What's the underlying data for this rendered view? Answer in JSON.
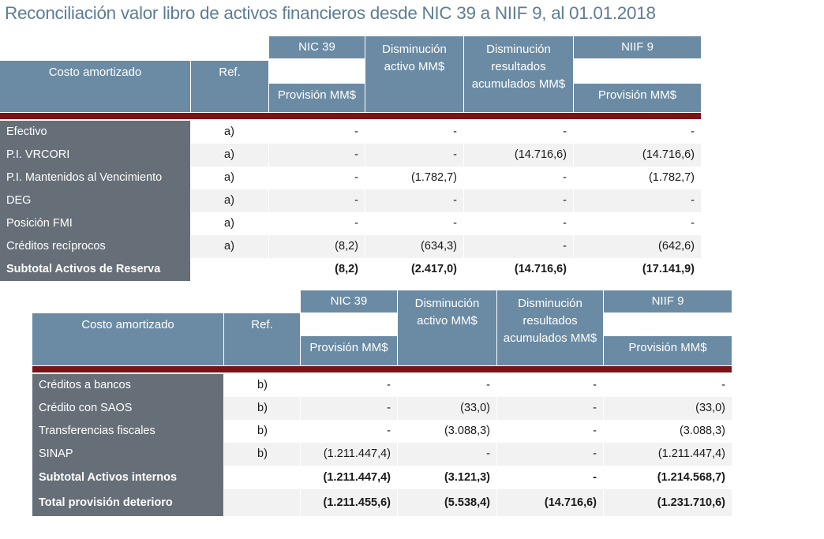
{
  "title": "Reconciliación valor libro de activos financieros desde NIC 39 a NIIF 9, al 01.01.2018",
  "table1": {
    "group_headers": [
      "NIC 39",
      "Disminución activo MM$",
      "Disminución resultados acumulados MM$",
      "NIIF 9"
    ],
    "headers": {
      "label": "Costo amortizado",
      "ref": "Ref.",
      "nic39": "Provisión MM$",
      "dis_activo": "Disminución activo MM$",
      "dis_result": "Disminución resultados acumulados MM$",
      "niif9": "Provisión MM$"
    },
    "rows": [
      {
        "label": "Efectivo",
        "ref": "a)",
        "nic39": "-",
        "dis_activo": "-",
        "dis_result": "-",
        "niif9": "-"
      },
      {
        "label": "P.I. VRCORI",
        "ref": "a)",
        "nic39": "-",
        "dis_activo": "-",
        "dis_result": "(14.716,6)",
        "niif9": "(14.716,6)"
      },
      {
        "label": "P.I. Mantenidos al Vencimiento",
        "ref": "a)",
        "nic39": "-",
        "dis_activo": "(1.782,7)",
        "dis_result": "-",
        "niif9": "(1.782,7)"
      },
      {
        "label": "DEG",
        "ref": "a)",
        "nic39": "-",
        "dis_activo": "-",
        "dis_result": "-",
        "niif9": "-"
      },
      {
        "label": "Posición FMI",
        "ref": "a)",
        "nic39": "-",
        "dis_activo": "-",
        "dis_result": "-",
        "niif9": "-"
      },
      {
        "label": "Créditos recíprocos",
        "ref": "a)",
        "nic39": "(8,2)",
        "dis_activo": "(634,3)",
        "dis_result": "-",
        "niif9": "(642,6)"
      },
      {
        "label": "Subtotal Activos de Reserva",
        "ref": "",
        "nic39": "(8,2)",
        "dis_activo": "(2.417,0)",
        "dis_result": "(14.716,6)",
        "niif9": "(17.141,9)"
      }
    ]
  },
  "table2": {
    "group_headers": [
      "NIC 39",
      "Disminución activo MM$",
      "Disminución resultados acumulados MM$",
      "NIIF 9"
    ],
    "headers": {
      "label": "Costo amortizado",
      "ref": "Ref.",
      "nic39": "Provisión MM$",
      "niif9": "Provisión MM$"
    },
    "rows": [
      {
        "label": "Créditos a bancos",
        "ref": "b)",
        "nic39": "-",
        "dis_activo": "-",
        "dis_result": "-",
        "niif9": "-"
      },
      {
        "label": "Crédito con SAOS",
        "ref": "b)",
        "nic39": "-",
        "dis_activo": "(33,0)",
        "dis_result": "-",
        "niif9": "(33,0)"
      },
      {
        "label": "Transferencias fiscales",
        "ref": "b)",
        "nic39": "-",
        "dis_activo": "(3.088,3)",
        "dis_result": "-",
        "niif9": "(3.088,3)"
      },
      {
        "label": "SINAP",
        "ref": "b)",
        "nic39": "(1.211.447,4)",
        "dis_activo": "-",
        "dis_result": "-",
        "niif9": "(1.211.447,4)"
      },
      {
        "label": "Subtotal Activos internos",
        "ref": "",
        "nic39": "(1.211.447,4)",
        "dis_activo": "(3.121,3)",
        "dis_result": "-",
        "niif9": "(1.214.568,7)"
      },
      {
        "label": "Total provisión deterioro",
        "ref": "",
        "nic39": "(1.211.455,6)",
        "dis_activo": "(5.538,4)",
        "dis_result": "(14.716,6)",
        "niif9": "(1.231.710,6)"
      }
    ]
  }
}
